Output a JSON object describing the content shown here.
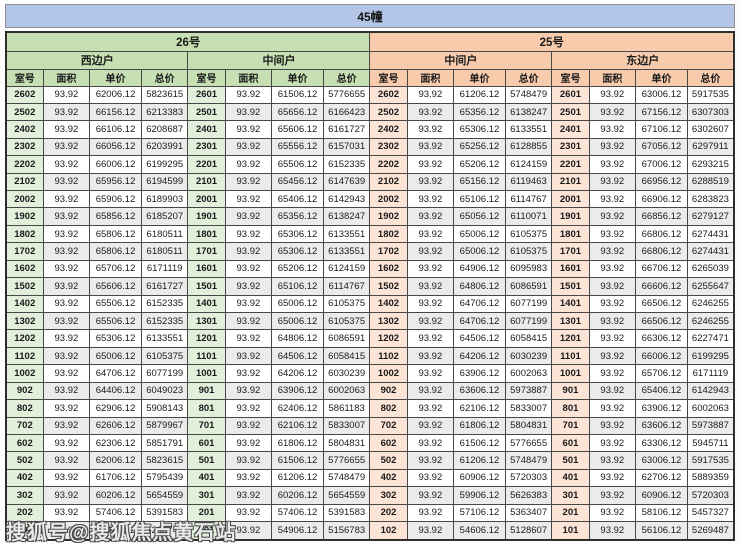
{
  "title": "45幢",
  "watermark": "搜狐号@搜狐焦点黄石站",
  "colors": {
    "title_bar": "#b4c6e7",
    "building_26_header": "#c6e0b4",
    "building_25_header": "#f8cbad",
    "room_col_26": "#e2efda",
    "room_col_25": "#fce4d6",
    "row_stripe": "#ebebeb"
  },
  "table": {
    "buildings": [
      {
        "label": "26号"
      },
      {
        "label": "25号"
      }
    ],
    "unit_types": [
      "西边户",
      "中间户",
      "中间户",
      "东边户"
    ],
    "column_headers": [
      "室号",
      "面积",
      "单价",
      "总价"
    ],
    "groups": [
      {
        "building": "26号",
        "unit_type": "西边户",
        "rows": [
          [
            "2602",
            "93.92",
            "62006.12",
            "5823615"
          ],
          [
            "2502",
            "93.92",
            "66156.12",
            "6213383"
          ],
          [
            "2402",
            "93.92",
            "66106.12",
            "6208687"
          ],
          [
            "2302",
            "93.92",
            "66056.12",
            "6203991"
          ],
          [
            "2202",
            "93.92",
            "66006.12",
            "6199295"
          ],
          [
            "2102",
            "93.92",
            "65956.12",
            "6194599"
          ],
          [
            "2002",
            "93.92",
            "65906.12",
            "6189903"
          ],
          [
            "1902",
            "93.92",
            "65856.12",
            "6185207"
          ],
          [
            "1802",
            "93.92",
            "65806.12",
            "6180511"
          ],
          [
            "1702",
            "93.92",
            "65806.12",
            "6180511"
          ],
          [
            "1602",
            "93.92",
            "65706.12",
            "6171119"
          ],
          [
            "1502",
            "93.92",
            "65606.12",
            "6161727"
          ],
          [
            "1402",
            "93.92",
            "65506.12",
            "6152335"
          ],
          [
            "1302",
            "93.92",
            "65506.12",
            "6152335"
          ],
          [
            "1202",
            "93.92",
            "65306.12",
            "6133551"
          ],
          [
            "1102",
            "93.92",
            "65006.12",
            "6105375"
          ],
          [
            "1002",
            "93.92",
            "64706.12",
            "6077199"
          ],
          [
            "902",
            "93.92",
            "64406.12",
            "6049023"
          ],
          [
            "802",
            "93.92",
            "62906.12",
            "5908143"
          ],
          [
            "702",
            "93.92",
            "62606.12",
            "5879967"
          ],
          [
            "602",
            "93.92",
            "62306.12",
            "5851791"
          ],
          [
            "502",
            "93.92",
            "62006.12",
            "5823615"
          ],
          [
            "402",
            "93.92",
            "61706.12",
            "5795439"
          ],
          [
            "302",
            "93.92",
            "60206.12",
            "5654559"
          ],
          [
            "202",
            "93.92",
            "57406.12",
            "5391583"
          ],
          [
            "102",
            "93.92",
            "55406.12",
            "5203743"
          ]
        ]
      },
      {
        "building": "26号",
        "unit_type": "中间户",
        "rows": [
          [
            "2601",
            "93.92",
            "61506.12",
            "5776655"
          ],
          [
            "2501",
            "93.92",
            "65656.12",
            "6166423"
          ],
          [
            "2401",
            "93.92",
            "65606.12",
            "6161727"
          ],
          [
            "2301",
            "93.92",
            "65556.12",
            "6157031"
          ],
          [
            "2201",
            "93.92",
            "65506.12",
            "6152335"
          ],
          [
            "2101",
            "93.92",
            "65456.12",
            "6147639"
          ],
          [
            "2001",
            "93.92",
            "65406.12",
            "6142943"
          ],
          [
            "1901",
            "93.92",
            "65356.12",
            "6138247"
          ],
          [
            "1801",
            "93.92",
            "65306.12",
            "6133551"
          ],
          [
            "1701",
            "93.92",
            "65306.12",
            "6133551"
          ],
          [
            "1601",
            "93.92",
            "65206.12",
            "6124159"
          ],
          [
            "1501",
            "93.92",
            "65106.12",
            "6114767"
          ],
          [
            "1401",
            "93.92",
            "65006.12",
            "6105375"
          ],
          [
            "1301",
            "93.92",
            "65006.12",
            "6105375"
          ],
          [
            "1201",
            "93.92",
            "64806.12",
            "6086591"
          ],
          [
            "1101",
            "93.92",
            "64506.12",
            "6058415"
          ],
          [
            "1001",
            "93.92",
            "64206.12",
            "6030239"
          ],
          [
            "901",
            "93.92",
            "63906.12",
            "6002063"
          ],
          [
            "801",
            "93.92",
            "62406.12",
            "5861183"
          ],
          [
            "701",
            "93.92",
            "62106.12",
            "5833007"
          ],
          [
            "601",
            "93.92",
            "61806.12",
            "5804831"
          ],
          [
            "501",
            "93.92",
            "61506.12",
            "5776655"
          ],
          [
            "401",
            "93.92",
            "61206.12",
            "5748479"
          ],
          [
            "301",
            "93.92",
            "60206.12",
            "5654559"
          ],
          [
            "201",
            "93.92",
            "57406.12",
            "5391583"
          ],
          [
            "101",
            "93.92",
            "54906.12",
            "5156783"
          ]
        ]
      },
      {
        "building": "25号",
        "unit_type": "中间户",
        "rows": [
          [
            "2602",
            "93.92",
            "61206.12",
            "5748479"
          ],
          [
            "2502",
            "93.92",
            "65356.12",
            "6138247"
          ],
          [
            "2402",
            "93.92",
            "65306.12",
            "6133551"
          ],
          [
            "2302",
            "93.92",
            "65256.12",
            "6128855"
          ],
          [
            "2202",
            "93.92",
            "65206.12",
            "6124159"
          ],
          [
            "2102",
            "93.92",
            "65156.12",
            "6119463"
          ],
          [
            "2002",
            "93.92",
            "65106.12",
            "6114767"
          ],
          [
            "1902",
            "93.92",
            "65056.12",
            "6110071"
          ],
          [
            "1802",
            "93.92",
            "65006.12",
            "6105375"
          ],
          [
            "1702",
            "93.92",
            "65006.12",
            "6105375"
          ],
          [
            "1602",
            "93.92",
            "64906.12",
            "6095983"
          ],
          [
            "1502",
            "93.92",
            "64806.12",
            "6086591"
          ],
          [
            "1402",
            "93.92",
            "64706.12",
            "6077199"
          ],
          [
            "1302",
            "93.92",
            "64706.12",
            "6077199"
          ],
          [
            "1202",
            "93.92",
            "64506.12",
            "6058415"
          ],
          [
            "1102",
            "93.92",
            "64206.12",
            "6030239"
          ],
          [
            "1002",
            "93.92",
            "63906.12",
            "6002063"
          ],
          [
            "902",
            "93.92",
            "63606.12",
            "5973887"
          ],
          [
            "802",
            "93.92",
            "62106.12",
            "5833007"
          ],
          [
            "702",
            "93.92",
            "61806.12",
            "5804831"
          ],
          [
            "602",
            "93.92",
            "61506.12",
            "5776655"
          ],
          [
            "502",
            "93.92",
            "61206.12",
            "5748479"
          ],
          [
            "402",
            "93.92",
            "60906.12",
            "5720303"
          ],
          [
            "302",
            "93.92",
            "59906.12",
            "5626383"
          ],
          [
            "202",
            "93.92",
            "57106.12",
            "5363407"
          ],
          [
            "102",
            "93.92",
            "54606.12",
            "5128607"
          ]
        ]
      },
      {
        "building": "25号",
        "unit_type": "东边户",
        "rows": [
          [
            "2601",
            "93.92",
            "63006.12",
            "5917535"
          ],
          [
            "2501",
            "93.92",
            "67156.12",
            "6307303"
          ],
          [
            "2401",
            "93.92",
            "67106.12",
            "6302607"
          ],
          [
            "2301",
            "93.92",
            "67056.12",
            "6297911"
          ],
          [
            "2201",
            "93.92",
            "67006.12",
            "6293215"
          ],
          [
            "2101",
            "93.92",
            "66956.12",
            "6288519"
          ],
          [
            "2001",
            "93.92",
            "66906.12",
            "6283823"
          ],
          [
            "1901",
            "93.92",
            "66856.12",
            "6279127"
          ],
          [
            "1801",
            "93.92",
            "66806.12",
            "6274431"
          ],
          [
            "1701",
            "93.92",
            "66806.12",
            "6274431"
          ],
          [
            "1601",
            "93.92",
            "66706.12",
            "6265039"
          ],
          [
            "1501",
            "93.92",
            "66606.12",
            "6255647"
          ],
          [
            "1401",
            "93.92",
            "66506.12",
            "6246255"
          ],
          [
            "1301",
            "93.92",
            "66506.12",
            "6246255"
          ],
          [
            "1201",
            "93.92",
            "66306.12",
            "6227471"
          ],
          [
            "1101",
            "93.92",
            "66006.12",
            "6199295"
          ],
          [
            "1001",
            "93.92",
            "65706.12",
            "6171119"
          ],
          [
            "901",
            "93.92",
            "65406.12",
            "6142943"
          ],
          [
            "801",
            "93.92",
            "63906.12",
            "6002063"
          ],
          [
            "701",
            "93.92",
            "63606.12",
            "5973887"
          ],
          [
            "601",
            "93.92",
            "63306.12",
            "5945711"
          ],
          [
            "501",
            "93.92",
            "63006.12",
            "5917535"
          ],
          [
            "401",
            "93.92",
            "62706.12",
            "5889359"
          ],
          [
            "301",
            "93.92",
            "60906.12",
            "5720303"
          ],
          [
            "201",
            "93.92",
            "58106.12",
            "5457327"
          ],
          [
            "101",
            "93.92",
            "56106.12",
            "5269487"
          ]
        ]
      }
    ]
  }
}
